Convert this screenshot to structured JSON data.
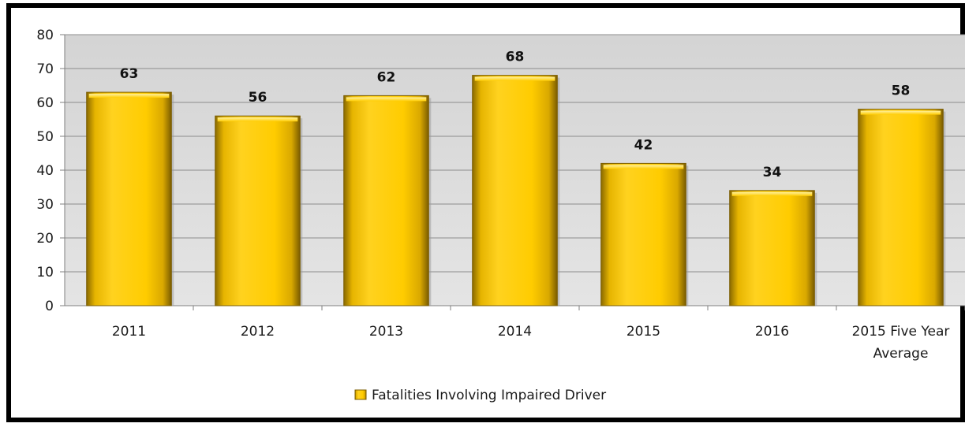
{
  "chart_data": {
    "type": "bar",
    "categories": [
      [
        "2011"
      ],
      [
        "2012"
      ],
      [
        "2013"
      ],
      [
        "2014"
      ],
      [
        "2015"
      ],
      [
        "2016"
      ],
      [
        "2015 Five Year",
        "Average"
      ]
    ],
    "series": [
      {
        "name": "Fatalities Involving Impaired Driver",
        "values": [
          63,
          56,
          62,
          68,
          42,
          34,
          58
        ],
        "color": "#FFC800"
      }
    ],
    "ylim": [
      0,
      80
    ],
    "yticks": [
      0,
      10,
      20,
      30,
      40,
      50,
      60,
      70,
      80
    ],
    "grid": true,
    "legend_position": "bottom",
    "plot_background": "#D9D9D9"
  }
}
